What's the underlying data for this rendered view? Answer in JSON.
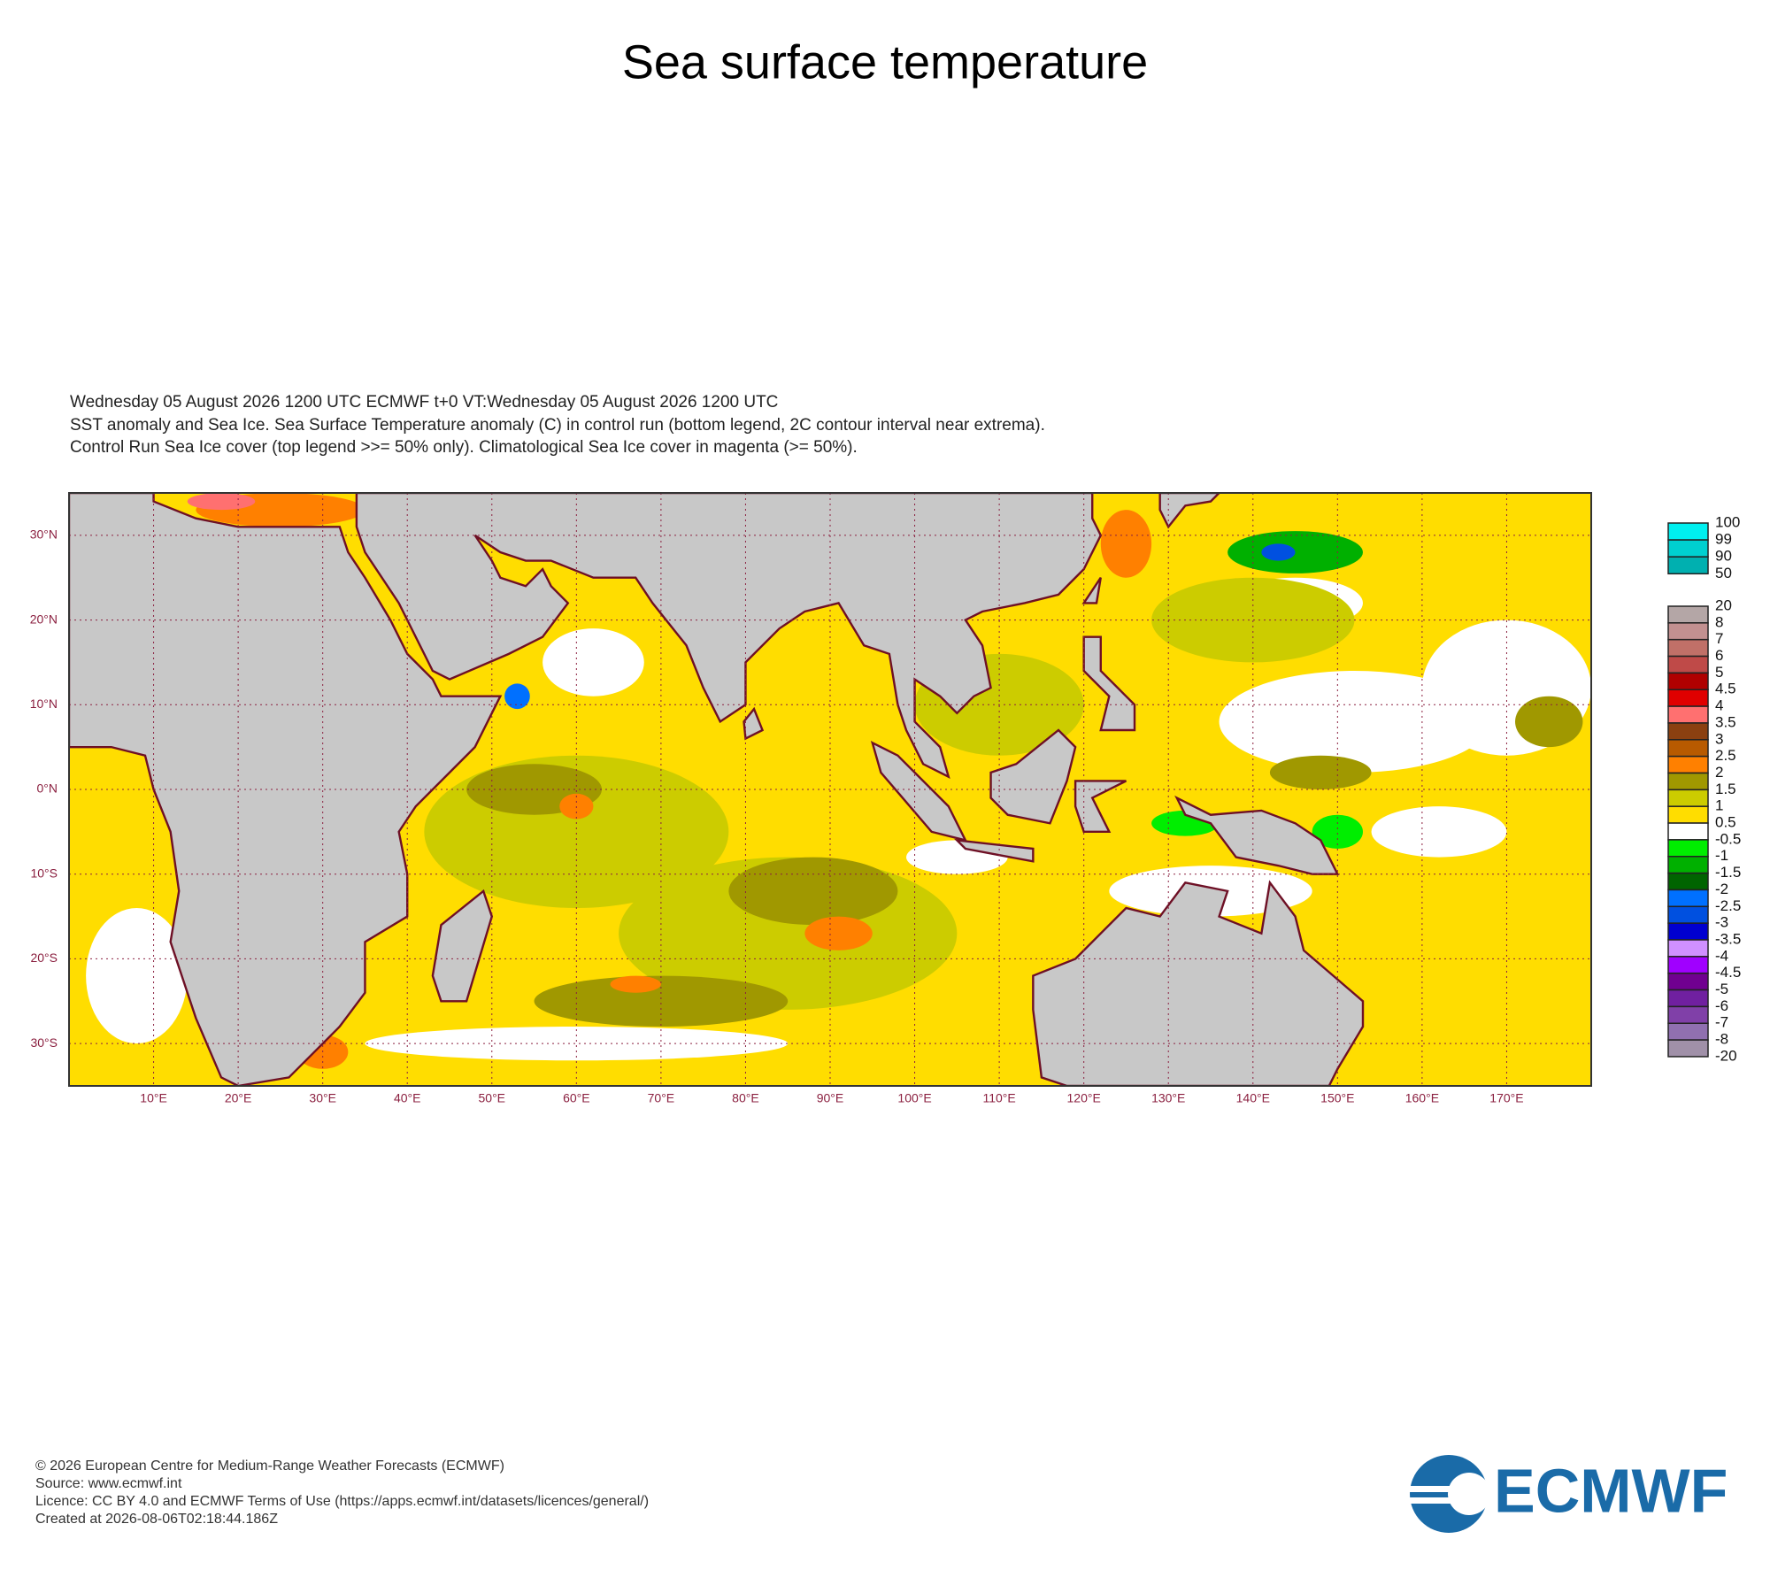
{
  "title": "Sea surface temperature",
  "header": [
    "Wednesday 05 August 2026 1200 UTC  ECMWF  t+0  VT:Wednesday 05 August 2026 1200 UTC",
    "SST anomaly and Sea Ice. Sea Surface Temperature anomaly (C) in control run (bottom legend, 2C contour interval near extrema).",
    "Control Run Sea Ice cover (top legend >>= 50% only). Climatological Sea Ice cover in magenta (>= 50%)."
  ],
  "map": {
    "xlim": [
      0,
      180
    ],
    "ylim": [
      -35,
      35
    ],
    "xticks": [
      {
        "value": 10,
        "label": "10°E"
      },
      {
        "value": 20,
        "label": "20°E"
      },
      {
        "value": 30,
        "label": "30°E"
      },
      {
        "value": 40,
        "label": "40°E"
      },
      {
        "value": 50,
        "label": "50°E"
      },
      {
        "value": 60,
        "label": "60°E"
      },
      {
        "value": 70,
        "label": "70°E"
      },
      {
        "value": 80,
        "label": "80°E"
      },
      {
        "value": 90,
        "label": "90°E"
      },
      {
        "value": 100,
        "label": "100°E"
      },
      {
        "value": 110,
        "label": "110°E"
      },
      {
        "value": 120,
        "label": "120°E"
      },
      {
        "value": 130,
        "label": "130°E"
      },
      {
        "value": 140,
        "label": "140°E"
      },
      {
        "value": 150,
        "label": "150°E"
      },
      {
        "value": 160,
        "label": "160°E"
      },
      {
        "value": 170,
        "label": "170°E"
      }
    ],
    "yticks": [
      {
        "value": 30,
        "label": "30°N"
      },
      {
        "value": 20,
        "label": "20°N"
      },
      {
        "value": 10,
        "label": "10°N"
      },
      {
        "value": 0,
        "label": "0°N"
      },
      {
        "value": -10,
        "label": "10°S"
      },
      {
        "value": -20,
        "label": "20°S"
      },
      {
        "value": -30,
        "label": "30°S"
      }
    ],
    "grid": true
  },
  "ice_legend": {
    "levels": [
      100,
      99,
      90,
      50
    ],
    "colors": [
      "#00f0f0",
      "#00d0d0",
      "#00b0b0"
    ]
  },
  "sst_legend": {
    "levels": [
      20,
      8,
      7,
      6,
      5,
      4.5,
      4,
      3.5,
      3,
      2.5,
      2,
      1.5,
      1,
      0.5,
      -0.5,
      -1,
      -1.5,
      -2,
      -2.5,
      -3,
      -3.5,
      -4,
      -4.5,
      -5,
      -6,
      -7,
      -8,
      -20
    ],
    "colors": [
      "#b4a6a6",
      "#c29090",
      "#c07068",
      "#bf4a48",
      "#b00000",
      "#e00000",
      "#ff7070",
      "#8b4010",
      "#b85a00",
      "#ff8000",
      "#a09800",
      "#cccc00",
      "#ffdd00",
      "#ffffff",
      "#00ee00",
      "#00b000",
      "#006400",
      "#0070ff",
      "#0050e0",
      "#0000d0",
      "#d090ff",
      "#a000ff",
      "#700090",
      "#7020a0",
      "#8040a8",
      "#9070b0",
      "#a090a8"
    ]
  },
  "footer": [
    "© 2026 European Centre for Medium-Range Weather Forecasts (ECMWF)",
    "Source: www.ecmwf.int",
    "Licence: CC BY 4.0 and ECMWF Terms of Use (https://apps.ecmwf.int/datasets/licences/general/)",
    "Created at 2026-08-06T02:18:44.186Z"
  ],
  "logo": "ECMWF"
}
